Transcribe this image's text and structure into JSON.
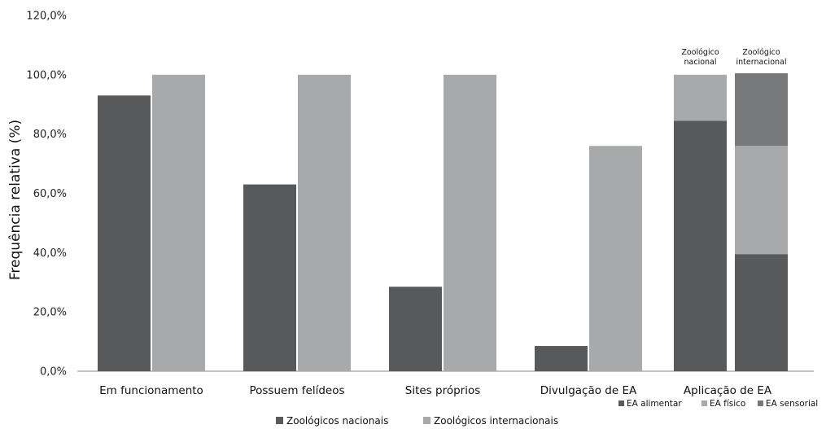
{
  "chart_data": {
    "type": "bar",
    "ylabel": "Frequência relativa (%)",
    "ylim": [
      0,
      120
    ],
    "y_ticks": [
      "0,0%",
      "20,0%",
      "40,0%",
      "60,0%",
      "80,0%",
      "100,0%",
      "120,0%"
    ],
    "categories": [
      "Em funcionamento",
      "Possuem felídeos",
      "Sites próprios",
      "Divulgação de EA",
      "Aplicação de EA"
    ],
    "series": [
      {
        "name": "Zoológicos nacionais",
        "color": "#58595b",
        "values": [
          93,
          63,
          28.5,
          8.5,
          null
        ]
      },
      {
        "name": "Zoológicos internacionais",
        "color": "#a7a9ab",
        "values": [
          100,
          100,
          100,
          76,
          null
        ]
      }
    ],
    "stacked_category": {
      "category": "Aplicação de EA",
      "bars": [
        {
          "label_line1": "Zoológico",
          "label_line2": "nacional",
          "segments": [
            {
              "name": "EA alimentar",
              "value": 84.5
            },
            {
              "name": "EA físico",
              "value": 15.5
            }
          ]
        },
        {
          "label_line1": "Zoológico",
          "label_line2": "internacional",
          "segments": [
            {
              "name": "EA alimentar",
              "value": 39.5
            },
            {
              "name": "EA físico",
              "value": 36.5
            },
            {
              "name": "EA sensorial",
              "value": 24.5
            }
          ]
        }
      ],
      "segment_colors": {
        "EA alimentar": "#58595b",
        "EA físico": "#a7a9ab",
        "EA sensorial": "#77797b"
      }
    },
    "legend_main": [
      "Zoológicos nacionais",
      "Zoológicos internacionais"
    ],
    "legend_small": [
      "EA alimentar",
      "EA físico",
      "EA sensorial"
    ],
    "grid": false
  }
}
